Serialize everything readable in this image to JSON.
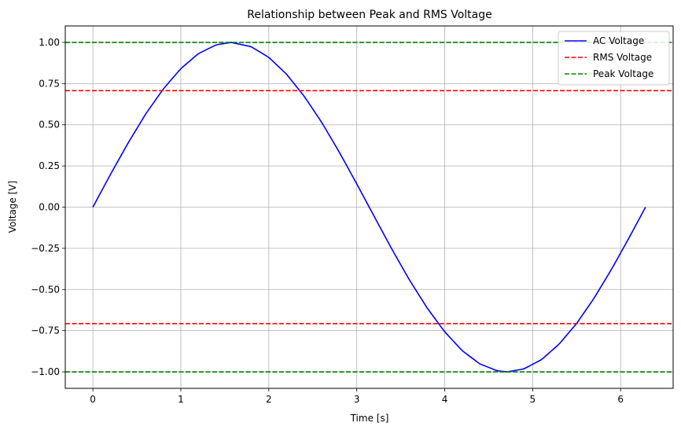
{
  "chart_data": {
    "type": "line",
    "title": "Relationship between Peak and RMS Voltage",
    "xlabel": "Time [s]",
    "ylabel": "Voltage [V]",
    "xlim": [
      -0.314,
      6.597
    ],
    "ylim": [
      -1.1,
      1.1
    ],
    "xticks": [
      0,
      1,
      2,
      3,
      4,
      5,
      6
    ],
    "xtick_labels": [
      "0",
      "1",
      "2",
      "3",
      "4",
      "5",
      "6"
    ],
    "yticks": [
      -1.0,
      -0.75,
      -0.5,
      -0.25,
      0.0,
      0.25,
      0.5,
      0.75,
      1.0
    ],
    "ytick_labels": [
      "−1.00",
      "−0.75",
      "−0.50",
      "−0.25",
      "0.00",
      "0.25",
      "0.50",
      "0.75",
      "1.00"
    ],
    "grid": true,
    "legend_position": "top-right",
    "series": [
      {
        "name": "AC Voltage",
        "color": "#0000ff",
        "style": "solid",
        "x": [
          0,
          0.2,
          0.4,
          0.6,
          0.8,
          1.0,
          1.2,
          1.4,
          1.5708,
          1.8,
          2.0,
          2.2,
          2.4,
          2.6,
          2.8,
          3.0,
          3.1416,
          3.4,
          3.6,
          3.8,
          4.0,
          4.2,
          4.4,
          4.6,
          4.7124,
          4.9,
          5.1,
          5.3,
          5.5,
          5.7,
          5.9,
          6.1,
          6.2832
        ],
        "y": [
          0.0,
          0.199,
          0.389,
          0.565,
          0.717,
          0.841,
          0.932,
          0.985,
          1.0,
          0.974,
          0.909,
          0.808,
          0.675,
          0.516,
          0.335,
          0.141,
          0.0,
          -0.256,
          -0.443,
          -0.612,
          -0.757,
          -0.872,
          -0.952,
          -0.994,
          -1.0,
          -0.982,
          -0.926,
          -0.832,
          -0.706,
          -0.551,
          -0.374,
          -0.182,
          0.0
        ]
      },
      {
        "name": "RMS Voltage",
        "color": "#ff0000",
        "style": "dashed",
        "hlines": [
          0.7071,
          -0.7071
        ]
      },
      {
        "name": "Peak Voltage",
        "color": "#008000",
        "style": "dashed",
        "hlines": [
          1.0,
          -1.0
        ]
      }
    ]
  }
}
